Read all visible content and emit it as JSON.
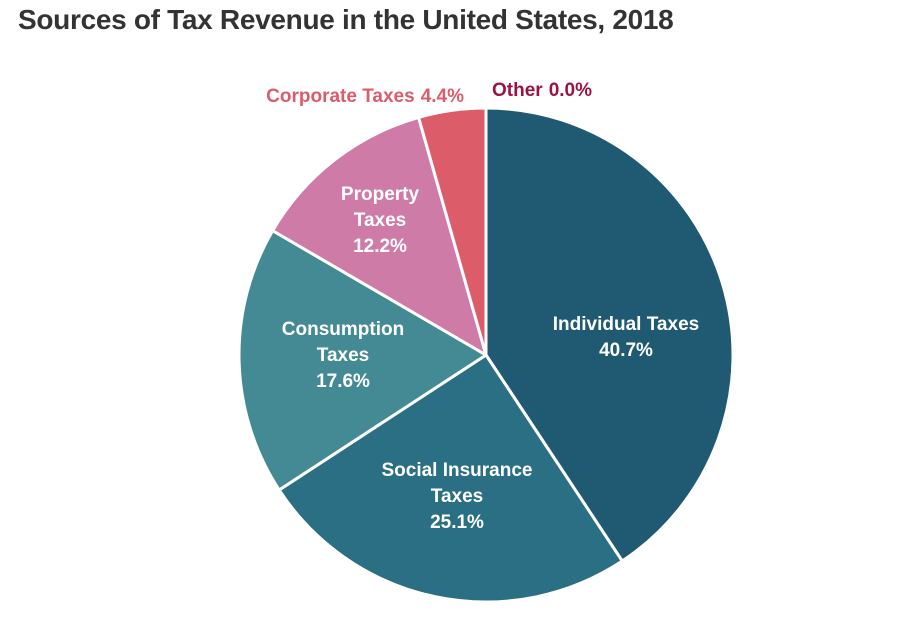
{
  "chart_data": {
    "type": "pie",
    "title": "Sources of Tax Revenue in the United States, 2018",
    "unit": "%",
    "slices": [
      {
        "label_lines": [
          "Individual Taxes"
        ],
        "value": 40.7,
        "value_text": "40.7%",
        "color": "#1f5a72",
        "label_color": "#ffffff"
      },
      {
        "label_lines": [
          "Social Insurance",
          "Taxes"
        ],
        "value": 25.1,
        "value_text": "25.1%",
        "color": "#2a6f84",
        "label_color": "#ffffff"
      },
      {
        "label_lines": [
          "Consumption",
          "Taxes"
        ],
        "value": 17.6,
        "value_text": "17.6%",
        "color": "#438a95",
        "label_color": "#ffffff"
      },
      {
        "label_lines": [
          "Property",
          "Taxes"
        ],
        "value": 12.2,
        "value_text": "12.2%",
        "color": "#cf7ba7",
        "label_color": "#ffffff"
      },
      {
        "label_lines": [
          "Corporate Taxes"
        ],
        "value": 4.4,
        "value_text": "4.4%",
        "color": "#dd5c6a",
        "label_color": "#dd5c6a"
      },
      {
        "label_lines": [
          "Other"
        ],
        "value": 0.0,
        "value_text": "0.0%",
        "color": "#9b1440",
        "label_color": "#9b1440"
      }
    ]
  }
}
